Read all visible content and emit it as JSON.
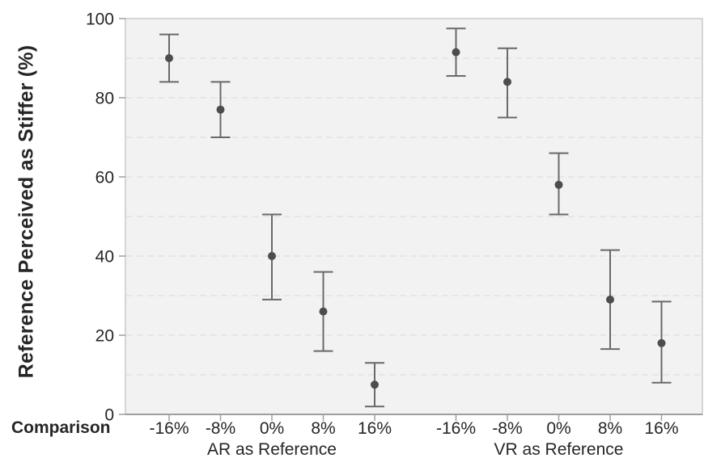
{
  "chart_data": {
    "type": "scatter",
    "title": "",
    "ylabel": "Reference Perceived as Stiffer (%)",
    "xlabel": "Comparison",
    "ylim": [
      0,
      100
    ],
    "y_ticks": [
      0,
      20,
      40,
      60,
      80,
      100
    ],
    "minor_gridline_step": 10,
    "grid": "horizontal dashed every 10 units",
    "legend": "none",
    "marker": "filled circle with vertical error bars and caps",
    "groups": [
      {
        "label": "AR as Reference",
        "categories": [
          "-16%",
          "-8%",
          "0%",
          "8%",
          "16%"
        ],
        "points": [
          {
            "category": "-16%",
            "mean": 90,
            "ci_low": 84,
            "ci_high": 96
          },
          {
            "category": "-8%",
            "mean": 77,
            "ci_low": 70,
            "ci_high": 84
          },
          {
            "category": "0%",
            "mean": 40,
            "ci_low": 29,
            "ci_high": 50.5
          },
          {
            "category": "8%",
            "mean": 26,
            "ci_low": 16,
            "ci_high": 36
          },
          {
            "category": "16%",
            "mean": 7.5,
            "ci_low": 2,
            "ci_high": 13
          }
        ]
      },
      {
        "label": "VR as Reference",
        "categories": [
          "-16%",
          "-8%",
          "0%",
          "8%",
          "16%"
        ],
        "points": [
          {
            "category": "-16%",
            "mean": 91.5,
            "ci_low": 85.5,
            "ci_high": 97.5
          },
          {
            "category": "-8%",
            "mean": 84,
            "ci_low": 75,
            "ci_high": 92.5
          },
          {
            "category": "0%",
            "mean": 58,
            "ci_low": 50.5,
            "ci_high": 66
          },
          {
            "category": "8%",
            "mean": 29,
            "ci_low": 16.5,
            "ci_high": 41.5
          },
          {
            "category": "16%",
            "mean": 18,
            "ci_low": 8,
            "ci_high": 28.5
          }
        ]
      }
    ],
    "colors": {
      "marker": "#4d4d4d",
      "error_bar": "#696969",
      "plot_background": "#f2f2f2",
      "gridline": "#dedede",
      "axis_line": "#9e9e9e",
      "border": "#c9c9c9",
      "text": "#262626"
    }
  }
}
